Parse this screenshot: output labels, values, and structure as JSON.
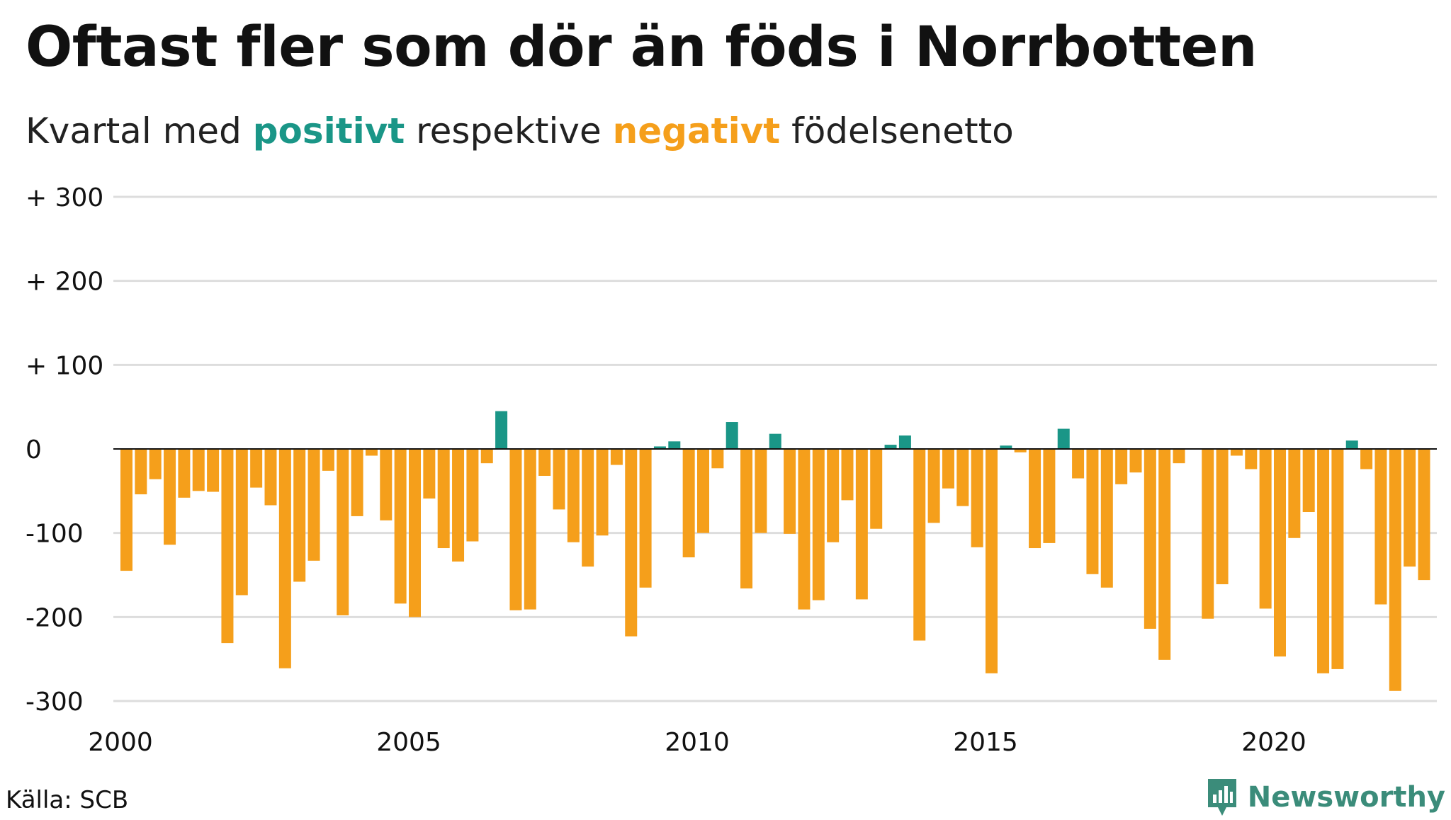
{
  "title": "Oftast fler som dör än föds i Norrbotten",
  "subtitle": {
    "prefix": "Kvartal med ",
    "positive_word": "positivt",
    "middle": " respektive ",
    "negative_word": "negativt",
    "suffix": " födelsenetto"
  },
  "source": "Källa: SCB",
  "logo": {
    "text": "Newsworthy",
    "icon": "bar-chart-badge-icon"
  },
  "colors": {
    "positive": "#1a9687",
    "negative": "#f59f1b",
    "grid": "#dddddd",
    "axis": "#111111"
  },
  "chart_data": {
    "type": "bar",
    "title": "Oftast fler som dör än föds i Norrbotten",
    "subtitle": "Kvartal med positivt respektive negativt födelsenetto",
    "xlabel": "",
    "ylabel": "",
    "x_ticks": [
      "2000",
      "2005",
      "2010",
      "2015",
      "2020"
    ],
    "y_ticks": [
      {
        "value": 300,
        "label": "+ 300"
      },
      {
        "value": 200,
        "label": "+ 200"
      },
      {
        "value": 100,
        "label": "+ 100"
      },
      {
        "value": 0,
        "label": "0"
      },
      {
        "value": -100,
        "label": "-100"
      },
      {
        "value": -200,
        "label": "-200"
      },
      {
        "value": -300,
        "label": "-300"
      }
    ],
    "ylim": [
      -300,
      300
    ],
    "x_range": [
      "2000",
      "2023"
    ],
    "grid": true,
    "legend": "in subtitle",
    "series": [
      {
        "values": [
          -145,
          -54,
          -36,
          -114,
          -58,
          -50,
          -51,
          -231,
          -174,
          -46,
          -67,
          -261,
          -158,
          -133,
          -26,
          -198,
          -80,
          -8,
          -85,
          -184,
          -200,
          -59,
          -118,
          -134,
          -110,
          -17,
          45,
          -192,
          -191,
          -32,
          -72,
          -111,
          -140,
          -103,
          -19,
          -223,
          -165,
          3,
          9,
          -129,
          -100,
          -23,
          32,
          -166,
          -100,
          18,
          -101,
          -191,
          -180,
          -111,
          -61,
          -179,
          -95,
          5,
          16,
          -228,
          -88,
          -47,
          -68,
          -117,
          -267,
          4,
          -4,
          -118,
          -112,
          24,
          -35,
          -149,
          -165,
          -42,
          -28,
          -214,
          -251,
          -17,
          0,
          -202,
          -161,
          -8,
          -24,
          -190,
          -247,
          -106,
          -75,
          -267,
          -262,
          10,
          -24,
          -185,
          -288,
          -140,
          -156
        ]
      }
    ]
  }
}
